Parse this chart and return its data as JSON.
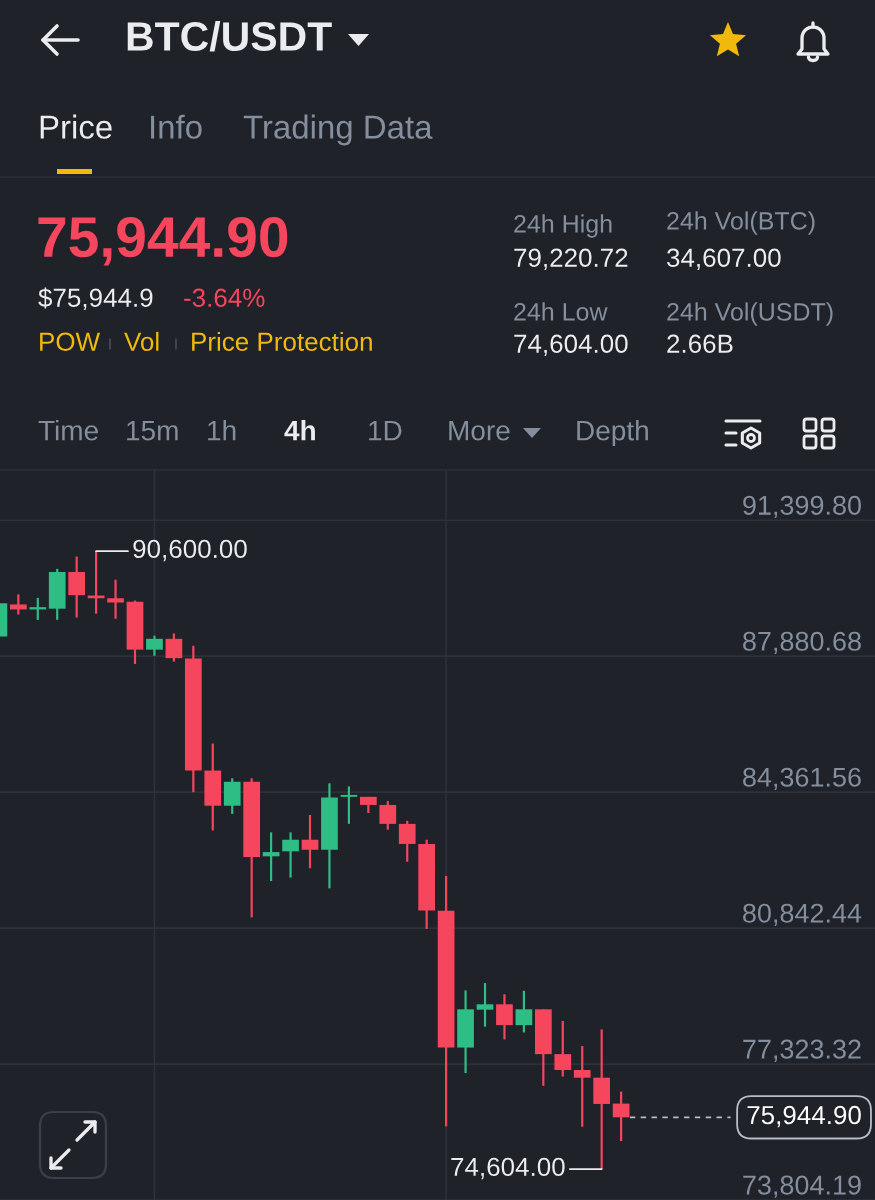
{
  "chart_data": {
    "type": "candlestick",
    "title": "BTC/USDT",
    "categories": [
      null,
      null,
      null,
      null,
      null,
      null,
      null,
      null,
      null,
      null,
      null,
      null,
      null,
      null,
      null,
      null,
      null,
      null,
      null,
      null,
      null,
      null,
      null,
      null,
      null,
      null,
      null,
      null,
      null,
      null,
      null,
      null,
      null
    ],
    "ohlc": [
      [
        88390,
        89250,
        88390,
        89250
      ],
      [
        89220,
        89480,
        88960,
        89090
      ],
      [
        89090,
        89390,
        88820,
        89150
      ],
      [
        89110,
        90140,
        88820,
        90060
      ],
      [
        90060,
        90460,
        88880,
        89460
      ],
      [
        89450,
        90600,
        88980,
        89380
      ],
      [
        89380,
        89860,
        88850,
        89270
      ],
      [
        89290,
        89320,
        87680,
        88050
      ],
      [
        88050,
        88410,
        87890,
        88330
      ],
      [
        88330,
        88470,
        87740,
        87830
      ],
      [
        87820,
        88150,
        84360,
        84920
      ],
      [
        84920,
        85620,
        83370,
        84010
      ],
      [
        84010,
        84720,
        83800,
        84630
      ],
      [
        84630,
        84720,
        81120,
        82680
      ],
      [
        82700,
        83320,
        82060,
        82810
      ],
      [
        82830,
        83320,
        82150,
        83130
      ],
      [
        83130,
        83770,
        82390,
        82870
      ],
      [
        82870,
        84590,
        81870,
        84220
      ],
      [
        84240,
        84510,
        83540,
        84290
      ],
      [
        84240,
        84240,
        83820,
        84030
      ],
      [
        84030,
        84130,
        83390,
        83540
      ],
      [
        83540,
        83620,
        82560,
        83020
      ],
      [
        83020,
        83130,
        80820,
        81300
      ],
      [
        81290,
        82190,
        75710,
        77750
      ],
      [
        77750,
        79230,
        77090,
        78740
      ],
      [
        78730,
        79420,
        78290,
        78870
      ],
      [
        78870,
        79130,
        77960,
        78330
      ],
      [
        78330,
        79220,
        78140,
        78740
      ],
      [
        78740,
        78740,
        76760,
        77580
      ],
      [
        77580,
        78440,
        77000,
        77170
      ],
      [
        77170,
        77790,
        75700,
        76970
      ],
      [
        76970,
        78220,
        74604,
        76290
      ],
      [
        76300,
        76610,
        75330,
        75944.9
      ]
    ],
    "colors": [
      "#2ebd85",
      "#f6465d",
      "#2ebd85",
      "#2ebd85",
      "#f6465d",
      "#f6465d",
      "#f6465d",
      "#f6465d",
      "#2ebd85",
      "#f6465d",
      "#f6465d",
      "#f6465d",
      "#2ebd85",
      "#f6465d",
      "#2ebd85",
      "#2ebd85",
      "#f6465d",
      "#2ebd85",
      "#2ebd85",
      "#f6465d",
      "#f6465d",
      "#f6465d",
      "#f6465d",
      "#f6465d",
      "#2ebd85",
      "#2ebd85",
      "#f6465d",
      "#2ebd85",
      "#f6465d",
      "#f6465d",
      "#f6465d",
      "#f6465d",
      "#f6465d"
    ],
    "ylim": [
      73804.19,
      92700
    ],
    "yticks": [
      {
        "value": 91399.8,
        "label": "91,399.80"
      },
      {
        "value": 87880.68,
        "label": "87,880.68"
      },
      {
        "value": 84361.56,
        "label": "84,361.56"
      },
      {
        "value": 80842.44,
        "label": "80,842.44"
      },
      {
        "value": 77323.32,
        "label": "77,323.32"
      },
      {
        "value": 73804.19,
        "label": "73,804.19"
      }
    ],
    "grid": true,
    "tick_labels": "y",
    "ref_lines": [
      {
        "axis": "y",
        "value": 75944.9,
        "label": "75,944.90",
        "color": "#b7bdc6",
        "line_style": "dashed"
      }
    ],
    "annotations": [
      "Price",
      "Info",
      "Trading Data",
      "75,944.90",
      "$75,944.9",
      "-3.64%",
      "POW",
      "Vol",
      "Price Protection",
      "24h High",
      "79,220.72",
      "24h Vol(BTC)",
      "34,607.00",
      "24h Low",
      "74,604.00",
      "24h Vol(USDT)",
      "2.66B",
      "Time",
      "15m",
      "1h",
      "4h",
      "1D",
      "More",
      "Depth",
      "90,600.00",
      "74,604.00"
    ]
  }
}
